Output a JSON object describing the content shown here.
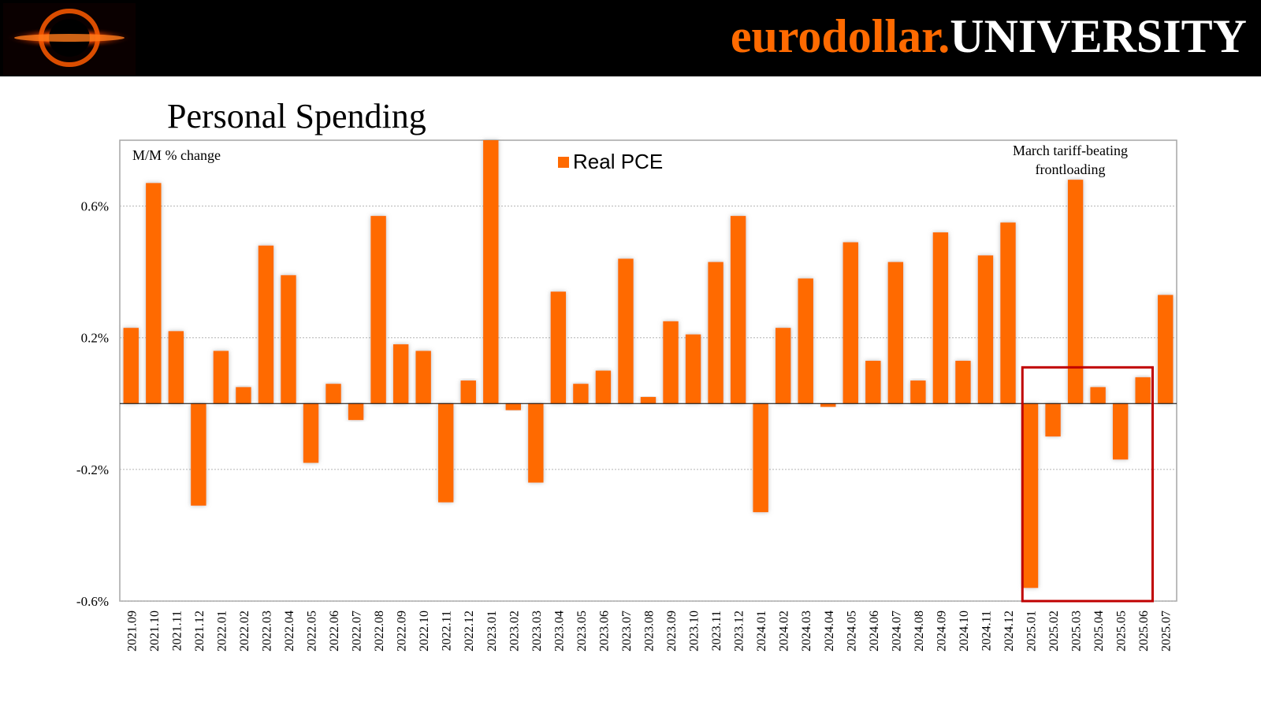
{
  "header": {
    "brand_prefix": "eurodollar.",
    "brand_suffix": "UNIVERSITY",
    "brand_prefix_color": "#ff6a00",
    "brand_suffix_color": "#ffffff",
    "logo_icon": "eye-of-sauron-logo"
  },
  "page": {
    "title": "Personal Spending"
  },
  "chart_data": {
    "type": "bar",
    "title": "Personal Spending",
    "subtitle": "M/M % change",
    "xlabel": "",
    "ylabel": "",
    "ylim": [
      -0.6,
      0.8
    ],
    "yticks": [
      0.6,
      0.2,
      -0.2,
      -0.6
    ],
    "ytick_labels": [
      "0.6%",
      "0.2%",
      "-0.2%",
      "-0.6%"
    ],
    "grid": true,
    "bar_color": "#ff6a00",
    "legend": {
      "label": "Real PCE",
      "placement": "top-center"
    },
    "annotation": {
      "lines": [
        "March tariff-beating",
        "frontloading"
      ],
      "highlight_range": [
        "2025.01",
        "2025.06"
      ],
      "highlight_color": "#c00000"
    },
    "categories": [
      "2021.09",
      "2021.10",
      "2021.11",
      "2021.12",
      "2022.01",
      "2022.02",
      "2022.03",
      "2022.04",
      "2022.05",
      "2022.06",
      "2022.07",
      "2022.08",
      "2022.09",
      "2022.10",
      "2022.11",
      "2022.12",
      "2023.01",
      "2023.02",
      "2023.03",
      "2023.04",
      "2023.05",
      "2023.06",
      "2023.07",
      "2023.08",
      "2023.09",
      "2023.10",
      "2023.11",
      "2023.12",
      "2024.01",
      "2024.02",
      "2024.03",
      "2024.04",
      "2024.05",
      "2024.06",
      "2024.07",
      "2024.08",
      "2024.09",
      "2024.10",
      "2024.11",
      "2024.12",
      "2025.01",
      "2025.02",
      "2025.03",
      "2025.04",
      "2025.05",
      "2025.06",
      "2025.07"
    ],
    "series": [
      {
        "name": "Real PCE",
        "values": [
          0.23,
          0.67,
          0.22,
          -0.31,
          0.16,
          0.05,
          0.48,
          0.39,
          -0.18,
          0.06,
          -0.05,
          0.57,
          0.18,
          0.16,
          -0.3,
          0.07,
          0.83,
          -0.02,
          -0.24,
          0.34,
          0.06,
          0.1,
          0.44,
          0.02,
          0.25,
          0.21,
          0.43,
          0.57,
          -0.33,
          0.23,
          0.38,
          -0.01,
          0.49,
          0.13,
          0.43,
          0.07,
          0.52,
          0.13,
          0.45,
          0.55,
          -0.56,
          -0.1,
          0.68,
          0.05,
          -0.17,
          0.08,
          0.33
        ]
      }
    ]
  }
}
